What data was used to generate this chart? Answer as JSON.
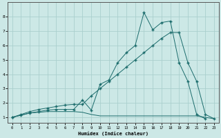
{
  "bg_color": "#cce8e6",
  "grid_color": "#aacfcd",
  "line_color": "#1a6b6b",
  "marker": "+",
  "xlabel": "Humidex (Indice chaleur)",
  "yticks": [
    1,
    2,
    3,
    4,
    5,
    6,
    7,
    8
  ],
  "xticks": [
    0,
    1,
    2,
    3,
    4,
    5,
    6,
    7,
    8,
    9,
    10,
    11,
    12,
    13,
    14,
    15,
    16,
    17,
    18,
    19,
    20,
    21,
    22,
    23
  ],
  "xlim": [
    -0.5,
    23.5
  ],
  "ylim": [
    0.6,
    9.0
  ],
  "s1_x": [
    0,
    1,
    2,
    3,
    4,
    5,
    6,
    7,
    8,
    9,
    10,
    11,
    12,
    13,
    14,
    15,
    16,
    17,
    18,
    19,
    20,
    21,
    22,
    23
  ],
  "s1_y": [
    1.0,
    1.15,
    1.3,
    1.35,
    1.4,
    1.4,
    1.4,
    1.4,
    1.35,
    1.2,
    1.1,
    1.1,
    1.1,
    1.1,
    1.1,
    1.1,
    1.1,
    1.1,
    1.1,
    1.1,
    1.1,
    1.1,
    1.0,
    0.9
  ],
  "s2_x": [
    0,
    1,
    2,
    3,
    4,
    5,
    6,
    7,
    8,
    9,
    10,
    11,
    12,
    13,
    14,
    15,
    16,
    17,
    18,
    19,
    20,
    21,
    22
  ],
  "s2_y": [
    1.0,
    1.15,
    1.3,
    1.4,
    1.5,
    1.55,
    1.55,
    1.55,
    2.2,
    1.5,
    3.3,
    3.6,
    4.8,
    5.5,
    6.0,
    8.3,
    7.1,
    7.6,
    7.7,
    4.8,
    3.5,
    1.2,
    0.9
  ],
  "s3_x": [
    0,
    1,
    2,
    3,
    4,
    5,
    6,
    7,
    8,
    9,
    10,
    11,
    12,
    13,
    14,
    15,
    16,
    17,
    18,
    19,
    20,
    21,
    22,
    23
  ],
  "s3_y": [
    1.0,
    1.2,
    1.4,
    1.55,
    1.65,
    1.75,
    1.85,
    1.9,
    1.9,
    2.5,
    3.0,
    3.5,
    4.0,
    4.5,
    5.0,
    5.5,
    6.0,
    6.5,
    6.9,
    6.9,
    4.8,
    3.5,
    1.2,
    0.9
  ]
}
